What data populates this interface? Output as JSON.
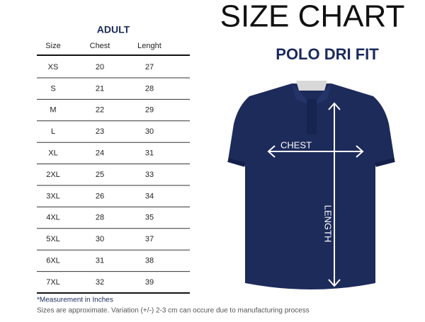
{
  "header": {
    "title": "SIZE CHART",
    "subtitle": "POLO DRI FIT"
  },
  "table": {
    "title": "ADULT",
    "columns": [
      "Size",
      "Chest",
      "Lenght"
    ],
    "rows": [
      [
        "XS",
        "20",
        "27"
      ],
      [
        "S",
        "21",
        "28"
      ],
      [
        "M",
        "22",
        "29"
      ],
      [
        "L",
        "23",
        "30"
      ],
      [
        "XL",
        "24",
        "31"
      ],
      [
        "2XL",
        "25",
        "33"
      ],
      [
        "3XL",
        "26",
        "34"
      ],
      [
        "4XL",
        "28",
        "35"
      ],
      [
        "5XL",
        "30",
        "37"
      ],
      [
        "6XL",
        "31",
        "38"
      ],
      [
        "7XL",
        "32",
        "39"
      ]
    ]
  },
  "illustration": {
    "chest_label": "CHEST",
    "length_label": "LENGTH"
  },
  "footer": {
    "note": "*Measurement in Inches",
    "disclaimer": "Sizes are approximate. Variation (+/-) 2-3 cm can occure due to manufacturing process"
  }
}
